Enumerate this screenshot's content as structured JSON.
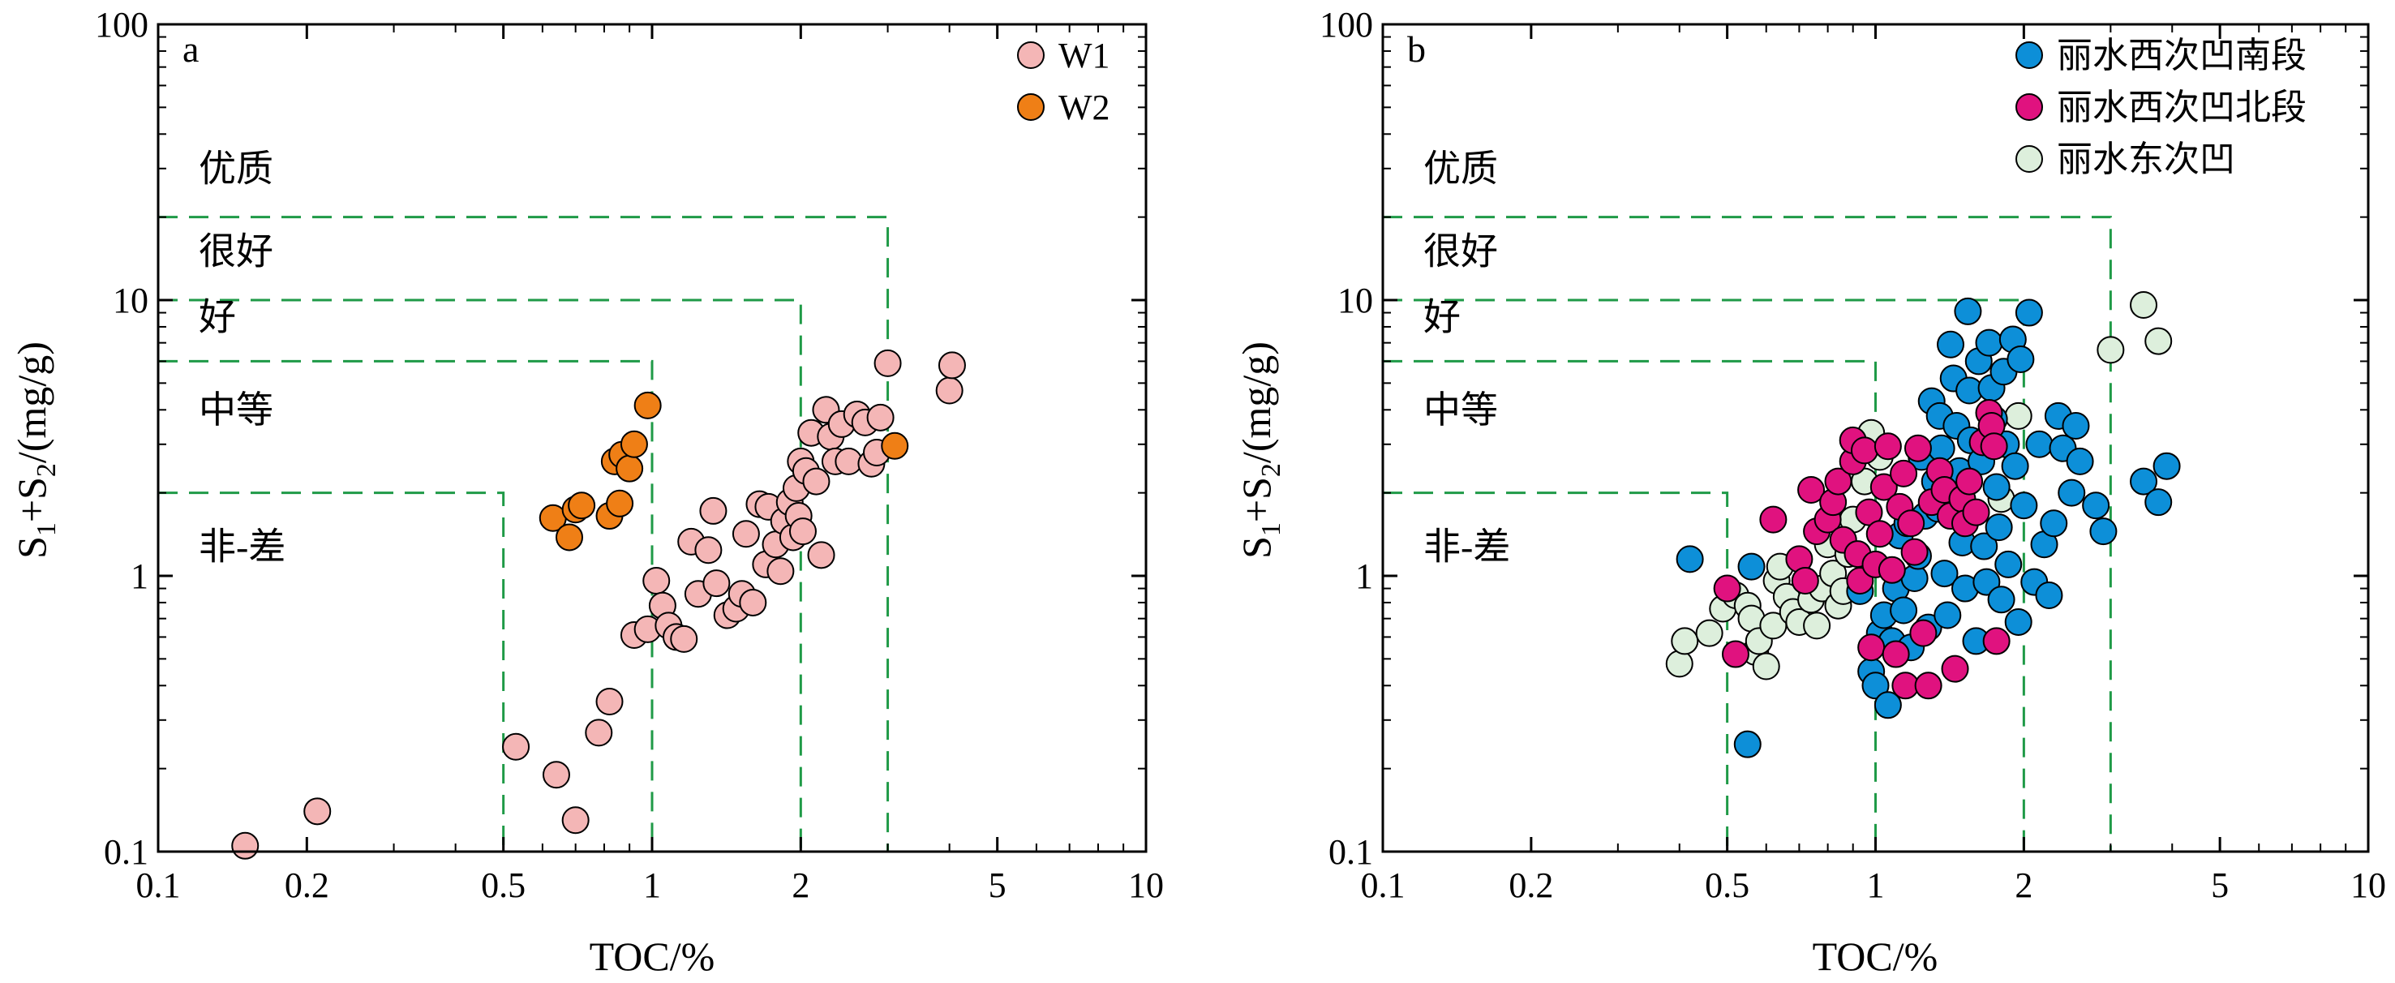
{
  "chart_data": [
    {
      "panel": "a",
      "type": "scatter",
      "x_scale": "log",
      "y_scale": "log",
      "xlim": [
        0.1,
        10
      ],
      "ylim": [
        0.1,
        100
      ],
      "xlabel": "TOC/%",
      "ylabel_parts": [
        "S",
        "1",
        "+S",
        "2",
        "/(mg/g)"
      ],
      "x_ticks": [
        {
          "v": 0.1,
          "t": "0.1"
        },
        {
          "v": 0.2,
          "t": "0.2"
        },
        {
          "v": 0.5,
          "t": "0.5"
        },
        {
          "v": 1,
          "t": "1"
        },
        {
          "v": 2,
          "t": "2"
        },
        {
          "v": 5,
          "t": "5"
        },
        {
          "v": 10,
          "t": "10"
        }
      ],
      "y_ticks": [
        {
          "v": 0.1,
          "t": "0.1"
        },
        {
          "v": 1,
          "t": "1"
        },
        {
          "v": 10,
          "t": "10"
        },
        {
          "v": 100,
          "t": "100"
        }
      ],
      "grid": false,
      "legend_position": "top-right",
      "region_labels": [
        {
          "text": "优质",
          "y": 27
        },
        {
          "text": "很好",
          "y": 13.5
        },
        {
          "text": "好",
          "y": 7.8
        },
        {
          "text": "中等",
          "y": 3.6
        },
        {
          "text": "非-差",
          "y": 1.15
        }
      ],
      "threshold_boxes": [
        {
          "toc": 0.5,
          "s": 2
        },
        {
          "toc": 1,
          "s": 6
        },
        {
          "toc": 2,
          "s": 10
        },
        {
          "toc": 3,
          "s": 20
        }
      ],
      "series": [
        {
          "name": "W1",
          "color": "#f4b6b6",
          "points": [
            [
              0.15,
              0.105
            ],
            [
              0.21,
              0.14
            ],
            [
              0.53,
              0.24
            ],
            [
              0.64,
              0.19
            ],
            [
              0.7,
              0.13
            ],
            [
              0.78,
              0.27
            ],
            [
              0.82,
              0.35
            ],
            [
              0.92,
              0.61
            ],
            [
              0.98,
              0.64
            ],
            [
              1.02,
              0.96
            ],
            [
              1.05,
              0.78
            ],
            [
              1.08,
              0.66
            ],
            [
              1.12,
              0.6
            ],
            [
              1.16,
              0.59
            ],
            [
              1.2,
              1.33
            ],
            [
              1.24,
              0.86
            ],
            [
              1.3,
              1.24
            ],
            [
              1.33,
              1.72
            ],
            [
              1.35,
              0.94
            ],
            [
              1.42,
              0.72
            ],
            [
              1.48,
              0.76
            ],
            [
              1.52,
              0.86
            ],
            [
              1.55,
              1.42
            ],
            [
              1.6,
              0.8
            ],
            [
              1.65,
              1.82
            ],
            [
              1.7,
              1.1
            ],
            [
              1.72,
              1.78
            ],
            [
              1.78,
              1.3
            ],
            [
              1.82,
              1.04
            ],
            [
              1.85,
              1.58
            ],
            [
              1.9,
              1.85
            ],
            [
              1.93,
              1.38
            ],
            [
              1.96,
              2.08
            ],
            [
              1.98,
              1.65
            ],
            [
              2.0,
              2.6
            ],
            [
              2.02,
              1.45
            ],
            [
              2.05,
              2.4
            ],
            [
              2.1,
              3.3
            ],
            [
              2.15,
              2.2
            ],
            [
              2.2,
              1.19
            ],
            [
              2.25,
              4.0
            ],
            [
              2.3,
              3.2
            ],
            [
              2.35,
              2.6
            ],
            [
              2.42,
              3.55
            ],
            [
              2.5,
              2.6
            ],
            [
              2.6,
              3.85
            ],
            [
              2.7,
              3.6
            ],
            [
              2.78,
              2.55
            ],
            [
              2.85,
              2.8
            ],
            [
              2.9,
              3.75
            ],
            [
              3.0,
              5.9
            ],
            [
              4.0,
              4.7
            ],
            [
              4.05,
              5.8
            ]
          ]
        },
        {
          "name": "W2",
          "color": "#ef7f16",
          "points": [
            [
              0.63,
              1.62
            ],
            [
              0.68,
              1.38
            ],
            [
              0.7,
              1.74
            ],
            [
              0.72,
              1.8
            ],
            [
              0.82,
              1.65
            ],
            [
              0.84,
              2.6
            ],
            [
              0.86,
              1.83
            ],
            [
              0.87,
              2.75
            ],
            [
              0.9,
              2.45
            ],
            [
              0.92,
              3.0
            ],
            [
              0.98,
              4.15
            ],
            [
              3.1,
              2.96
            ]
          ]
        }
      ]
    },
    {
      "panel": "b",
      "type": "scatter",
      "x_scale": "log",
      "y_scale": "log",
      "xlim": [
        0.1,
        10
      ],
      "ylim": [
        0.1,
        100
      ],
      "xlabel": "TOC/%",
      "ylabel_parts": [
        "S",
        "1",
        "+S",
        "2",
        "/(mg/g)"
      ],
      "x_ticks": [
        {
          "v": 0.1,
          "t": "0.1"
        },
        {
          "v": 0.2,
          "t": "0.2"
        },
        {
          "v": 0.5,
          "t": "0.5"
        },
        {
          "v": 1,
          "t": "1"
        },
        {
          "v": 2,
          "t": "2"
        },
        {
          "v": 5,
          "t": "5"
        },
        {
          "v": 10,
          "t": "10"
        }
      ],
      "y_ticks": [
        {
          "v": 0.1,
          "t": "0.1"
        },
        {
          "v": 1,
          "t": "1"
        },
        {
          "v": 10,
          "t": "10"
        },
        {
          "v": 100,
          "t": "100"
        }
      ],
      "grid": false,
      "legend_position": "top-right",
      "region_labels": [
        {
          "text": "优质",
          "y": 27
        },
        {
          "text": "很好",
          "y": 13.5
        },
        {
          "text": "好",
          "y": 7.8
        },
        {
          "text": "中等",
          "y": 3.6
        },
        {
          "text": "非-差",
          "y": 1.15
        }
      ],
      "threshold_boxes": [
        {
          "toc": 0.5,
          "s": 2
        },
        {
          "toc": 1,
          "s": 6
        },
        {
          "toc": 2,
          "s": 10
        },
        {
          "toc": 3,
          "s": 20
        }
      ],
      "series": [
        {
          "name": "丽水东次凹",
          "color": "#ddefdc",
          "points": [
            [
              0.4,
              0.48
            ],
            [
              0.41,
              0.58
            ],
            [
              0.46,
              0.62
            ],
            [
              0.49,
              0.76
            ],
            [
              0.52,
              0.85
            ],
            [
              0.55,
              0.78
            ],
            [
              0.56,
              0.7
            ],
            [
              0.57,
              0.53
            ],
            [
              0.58,
              0.58
            ],
            [
              0.6,
              0.47
            ],
            [
              0.62,
              0.66
            ],
            [
              0.63,
              0.96
            ],
            [
              0.64,
              1.08
            ],
            [
              0.66,
              0.84
            ],
            [
              0.68,
              0.74
            ],
            [
              0.7,
              0.68
            ],
            [
              0.72,
              0.96
            ],
            [
              0.74,
              0.82
            ],
            [
              0.76,
              0.66
            ],
            [
              0.78,
              0.9
            ],
            [
              0.8,
              1.3
            ],
            [
              0.82,
              1.02
            ],
            [
              0.84,
              0.78
            ],
            [
              0.86,
              0.88
            ],
            [
              0.88,
              1.2
            ],
            [
              0.9,
              1.6
            ],
            [
              0.95,
              2.2
            ],
            [
              0.98,
              3.3
            ],
            [
              1.02,
              2.7
            ],
            [
              1.8,
              1.9
            ],
            [
              1.95,
              3.8
            ],
            [
              3.0,
              6.6
            ],
            [
              3.5,
              9.6
            ],
            [
              3.75,
              7.1
            ]
          ]
        },
        {
          "name": "丽水西次凹南段",
          "color": "#0d8fd8",
          "points": [
            [
              0.42,
              1.15
            ],
            [
              0.55,
              0.245
            ],
            [
              0.56,
              1.08
            ],
            [
              0.93,
              0.88
            ],
            [
              0.98,
              0.45
            ],
            [
              1.0,
              0.4
            ],
            [
              1.02,
              0.62
            ],
            [
              1.04,
              0.72
            ],
            [
              1.06,
              0.34
            ],
            [
              1.08,
              0.58
            ],
            [
              1.1,
              0.9
            ],
            [
              1.12,
              1.4
            ],
            [
              1.14,
              0.75
            ],
            [
              1.16,
              1.55
            ],
            [
              1.18,
              0.55
            ],
            [
              1.2,
              0.98
            ],
            [
              1.22,
              1.18
            ],
            [
              1.24,
              2.7
            ],
            [
              1.26,
              1.65
            ],
            [
              1.28,
              0.65
            ],
            [
              1.3,
              4.3
            ],
            [
              1.32,
              2.2
            ],
            [
              1.34,
              1.75
            ],
            [
              1.35,
              3.8
            ],
            [
              1.36,
              2.9
            ],
            [
              1.38,
              1.02
            ],
            [
              1.4,
              0.72
            ],
            [
              1.42,
              6.9
            ],
            [
              1.44,
              5.2
            ],
            [
              1.46,
              3.5
            ],
            [
              1.48,
              2.4
            ],
            [
              1.5,
              1.32
            ],
            [
              1.52,
              0.9
            ],
            [
              1.54,
              9.1
            ],
            [
              1.55,
              4.7
            ],
            [
              1.56,
              3.1
            ],
            [
              1.58,
              1.7
            ],
            [
              1.6,
              0.58
            ],
            [
              1.62,
              6.0
            ],
            [
              1.64,
              2.6
            ],
            [
              1.66,
              1.28
            ],
            [
              1.68,
              0.95
            ],
            [
              1.7,
              7.0
            ],
            [
              1.72,
              4.8
            ],
            [
              1.74,
              3.7
            ],
            [
              1.76,
              2.1
            ],
            [
              1.78,
              1.5
            ],
            [
              1.8,
              0.82
            ],
            [
              1.82,
              5.5
            ],
            [
              1.84,
              3.0
            ],
            [
              1.86,
              1.1
            ],
            [
              1.9,
              7.2
            ],
            [
              1.92,
              2.5
            ],
            [
              1.95,
              0.68
            ],
            [
              1.97,
              6.1
            ],
            [
              2.0,
              1.8
            ],
            [
              2.05,
              9.0
            ],
            [
              2.1,
              0.95
            ],
            [
              2.15,
              3.0
            ],
            [
              2.2,
              1.3
            ],
            [
              2.25,
              0.85
            ],
            [
              2.3,
              1.55
            ],
            [
              2.35,
              3.8
            ],
            [
              2.4,
              2.9
            ],
            [
              2.5,
              2.0
            ],
            [
              2.55,
              3.5
            ],
            [
              2.6,
              2.6
            ],
            [
              2.8,
              1.8
            ],
            [
              2.9,
              1.45
            ],
            [
              3.5,
              2.2
            ],
            [
              3.75,
              1.85
            ],
            [
              3.9,
              2.5
            ]
          ]
        },
        {
          "name": "丽水西次凹北段",
          "color": "#e0127f",
          "points": [
            [
              0.5,
              0.9
            ],
            [
              0.52,
              0.52
            ],
            [
              0.62,
              1.6
            ],
            [
              0.7,
              1.15
            ],
            [
              0.72,
              0.96
            ],
            [
              0.74,
              2.05
            ],
            [
              0.76,
              1.45
            ],
            [
              0.8,
              1.6
            ],
            [
              0.82,
              1.85
            ],
            [
              0.84,
              2.2
            ],
            [
              0.86,
              1.35
            ],
            [
              0.9,
              2.6
            ],
            [
              0.9,
              3.1
            ],
            [
              0.92,
              1.2
            ],
            [
              0.93,
              0.96
            ],
            [
              0.95,
              2.85
            ],
            [
              0.97,
              1.7
            ],
            [
              0.98,
              0.55
            ],
            [
              1.0,
              1.1
            ],
            [
              1.02,
              1.42
            ],
            [
              1.04,
              2.1
            ],
            [
              1.06,
              2.95
            ],
            [
              1.08,
              1.05
            ],
            [
              1.1,
              0.52
            ],
            [
              1.12,
              1.78
            ],
            [
              1.14,
              2.35
            ],
            [
              1.15,
              0.4
            ],
            [
              1.18,
              1.55
            ],
            [
              1.2,
              1.22
            ],
            [
              1.22,
              2.9
            ],
            [
              1.25,
              0.62
            ],
            [
              1.28,
              0.4
            ],
            [
              1.3,
              1.85
            ],
            [
              1.35,
              2.4
            ],
            [
              1.38,
              2.05
            ],
            [
              1.42,
              1.65
            ],
            [
              1.45,
              0.46
            ],
            [
              1.5,
              1.9
            ],
            [
              1.52,
              1.55
            ],
            [
              1.55,
              2.2
            ],
            [
              1.6,
              1.7
            ],
            [
              1.65,
              3.05
            ],
            [
              1.7,
              3.9
            ],
            [
              1.72,
              3.5
            ],
            [
              1.74,
              2.95
            ],
            [
              1.76,
              0.58
            ]
          ]
        }
      ],
      "legend_order": [
        "丽水西次凹南段",
        "丽水西次凹北段",
        "丽水东次凹"
      ]
    }
  ]
}
